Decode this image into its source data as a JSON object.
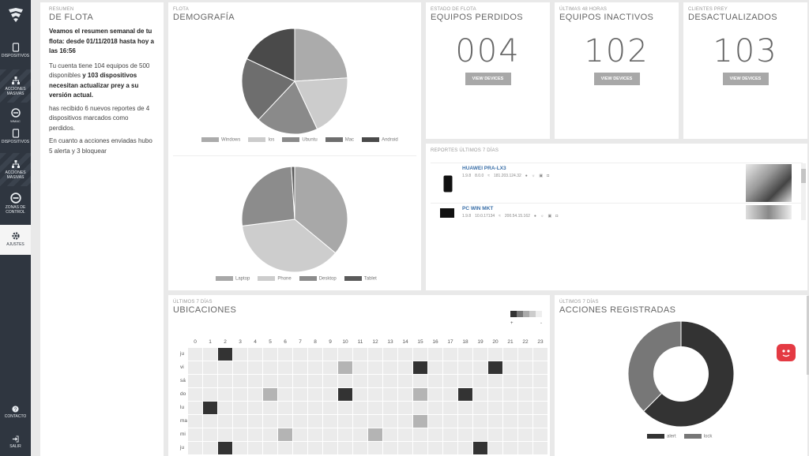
{
  "sidebar": {
    "items": [
      {
        "label": "Dispositivos",
        "icon": "tablet-icon"
      },
      {
        "label": "Acciones masivas",
        "icon": "hierarchy-icon"
      },
      {
        "label": "Dispositivos",
        "icon": "tablet-icon"
      },
      {
        "label": "Acciones masivas",
        "icon": "hierarchy-icon"
      },
      {
        "label": "Zonas de control",
        "icon": "prey-icon"
      },
      {
        "label": "Ajustes",
        "icon": "gear-icon"
      }
    ],
    "wmac": "WMAC",
    "contacto": "Contacto",
    "salir": "Salir"
  },
  "summary": {
    "sub": "Resumen",
    "title": "de flota",
    "p1": "Veamos el resumen semanal de tu flota: desde 01/11/2018 hasta hoy a las 16:56",
    "p2a": "Tu cuenta tiene 104 equipos de 500 disponibles",
    "p2b": " y 103 dispositivos necesitan actualizar prey a su versión actual.",
    "p3": "has recibido 6 nuevos reportes de 4 dispositivos marcados como perdidos.",
    "p4": "En cuanto a acciones enviadas hubo 5 alerta y 3 bloquear"
  },
  "demography": {
    "sub": "Flota",
    "title": "Demografía",
    "os_legend": [
      "Windows",
      "Ios",
      "Ubuntu",
      "Mac",
      "Android"
    ],
    "type_legend": [
      "Laptop",
      "Phone",
      "Desktop",
      "Tablet"
    ]
  },
  "stats": [
    {
      "sub": "Estado de flota",
      "title": "Equipos perdidos",
      "value": "004",
      "button": "View devices"
    },
    {
      "sub": "Últimas 48 horas",
      "title": "Equipos inactivos",
      "value": "102",
      "button": "View devices"
    },
    {
      "sub": "Clientes Prey",
      "title": "Desactualizados",
      "value": "103",
      "button": "View devices"
    }
  ],
  "reports": {
    "title": "Reportes últimos 7 días",
    "rows": [
      {
        "name": "HUAWEI PRA-LX3",
        "version": "1.9.8",
        "battery": "8.0.0",
        "ip": "181.203.124.32"
      },
      {
        "name": "PC WIN MKT",
        "version": "1.9.8",
        "battery": "10.0.17134",
        "ip": "200.54.15.162"
      }
    ]
  },
  "locations": {
    "sub": "Últimos 7 días",
    "title": "Ubicaciones",
    "scale_plus": "+",
    "scale_minus": "-",
    "hours": [
      "0",
      "1",
      "2",
      "3",
      "4",
      "5",
      "6",
      "7",
      "8",
      "9",
      "10",
      "11",
      "12",
      "13",
      "14",
      "15",
      "16",
      "17",
      "18",
      "19",
      "20",
      "21",
      "22",
      "23"
    ],
    "days": [
      "ju",
      "vi",
      "sá",
      "do",
      "lu",
      "ma",
      "mi",
      "ju"
    ],
    "activity": [
      {
        "day": 0,
        "hour": 2,
        "level": 4
      },
      {
        "day": 1,
        "hour": 10,
        "level": 2
      },
      {
        "day": 1,
        "hour": 15,
        "level": 4
      },
      {
        "day": 1,
        "hour": 20,
        "level": 4
      },
      {
        "day": 3,
        "hour": 5,
        "level": 2
      },
      {
        "day": 3,
        "hour": 10,
        "level": 4
      },
      {
        "day": 3,
        "hour": 15,
        "level": 2
      },
      {
        "day": 3,
        "hour": 18,
        "level": 4
      },
      {
        "day": 4,
        "hour": 1,
        "level": 4
      },
      {
        "day": 5,
        "hour": 15,
        "level": 2
      },
      {
        "day": 6,
        "hour": 6,
        "level": 2
      },
      {
        "day": 6,
        "hour": 12,
        "level": 2
      },
      {
        "day": 7,
        "hour": 2,
        "level": 4
      },
      {
        "day": 7,
        "hour": 19,
        "level": 4
      }
    ]
  },
  "actions": {
    "sub": "Últimos 7 días",
    "title": "Acciones registradas",
    "legend": [
      "alert",
      "lock"
    ]
  },
  "chart_data": [
    {
      "type": "pie",
      "categories": [
        "Windows",
        "Ios",
        "Ubuntu",
        "Mac",
        "Android"
      ],
      "values": [
        24,
        19,
        19,
        20,
        18
      ],
      "colors": [
        "#ababab",
        "#cccccc",
        "#8a8a8a",
        "#6e6e6e",
        "#4a4a4a"
      ]
    },
    {
      "type": "pie",
      "categories": [
        "Laptop",
        "Phone",
        "Desktop",
        "Tablet"
      ],
      "values": [
        36,
        37,
        26,
        1
      ],
      "colors": [
        "#a8a8a8",
        "#cdcdcd",
        "#8c8c8c",
        "#5a5a5a"
      ]
    },
    {
      "type": "pie",
      "categories": [
        "alert",
        "lock"
      ],
      "values": [
        62.5,
        37.5
      ],
      "colors": [
        "#333333",
        "#777777"
      ]
    }
  ]
}
